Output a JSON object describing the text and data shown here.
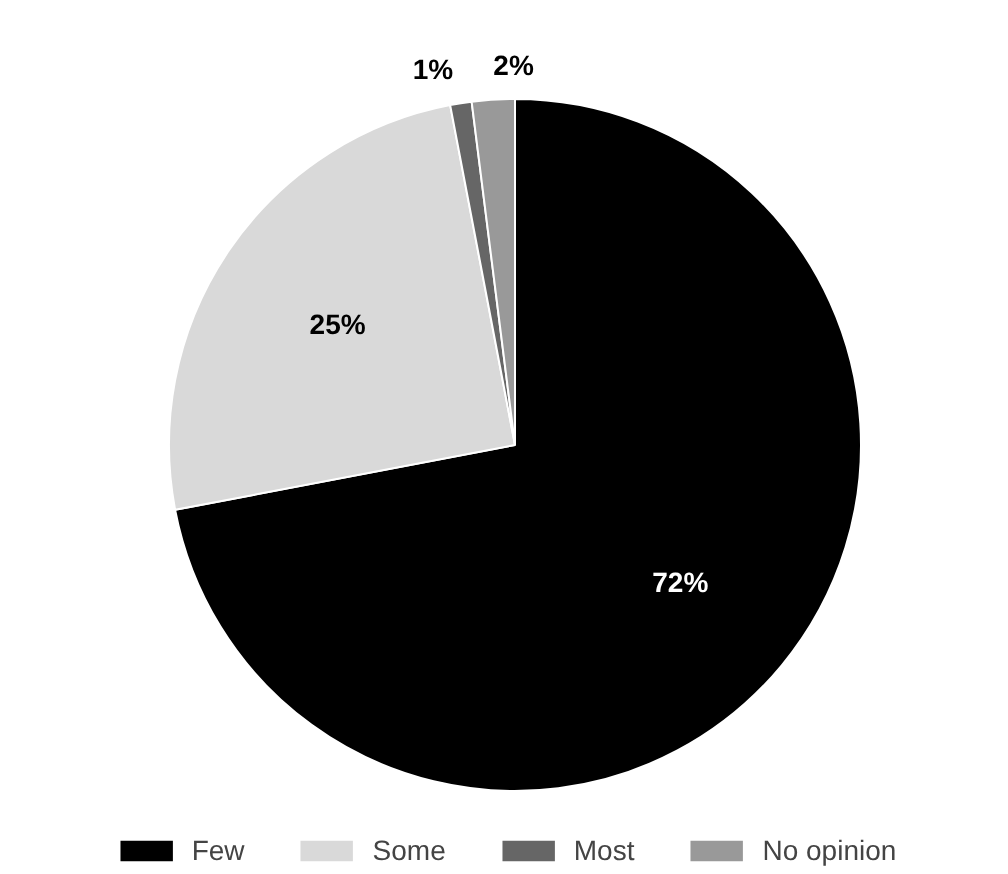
{
  "chart_data": {
    "type": "pie",
    "categories": [
      "Few",
      "Some",
      "Most",
      "No opinion"
    ],
    "values": [
      72,
      25,
      1,
      2
    ],
    "colors": [
      "#000000",
      "#d9d9d9",
      "#666666",
      "#999999"
    ],
    "value_labels": [
      "72%",
      "25%",
      "1%",
      "2%"
    ],
    "legend": "bottom"
  }
}
